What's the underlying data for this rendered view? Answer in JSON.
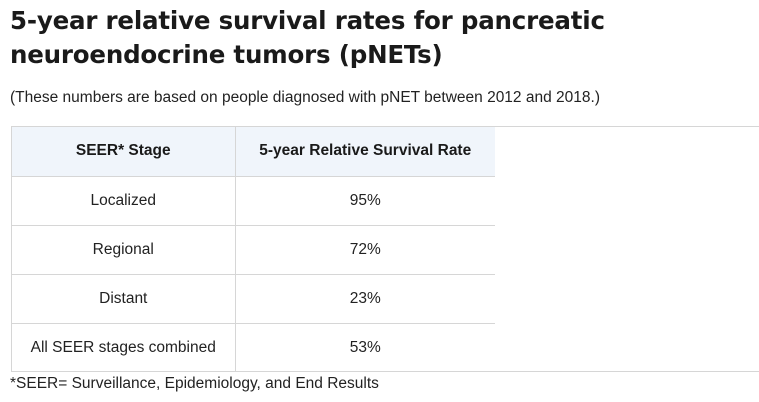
{
  "title": "5-year relative survival rates for pancreatic neuroendocrine tumors (pNETs)",
  "note": "(These numbers are based on people diagnosed with pNET between 2012 and 2018.)",
  "table": {
    "headers": [
      "SEER* Stage",
      "5-year Relative Survival Rate"
    ],
    "rows": [
      {
        "stage": "Localized",
        "rate": "95%"
      },
      {
        "stage": "Regional",
        "rate": "72%"
      },
      {
        "stage": "Distant",
        "rate": "23%"
      },
      {
        "stage": "All SEER stages combined",
        "rate": "53%"
      }
    ]
  },
  "footnote": "*SEER= Surveillance, Epidemiology, and End Results"
}
